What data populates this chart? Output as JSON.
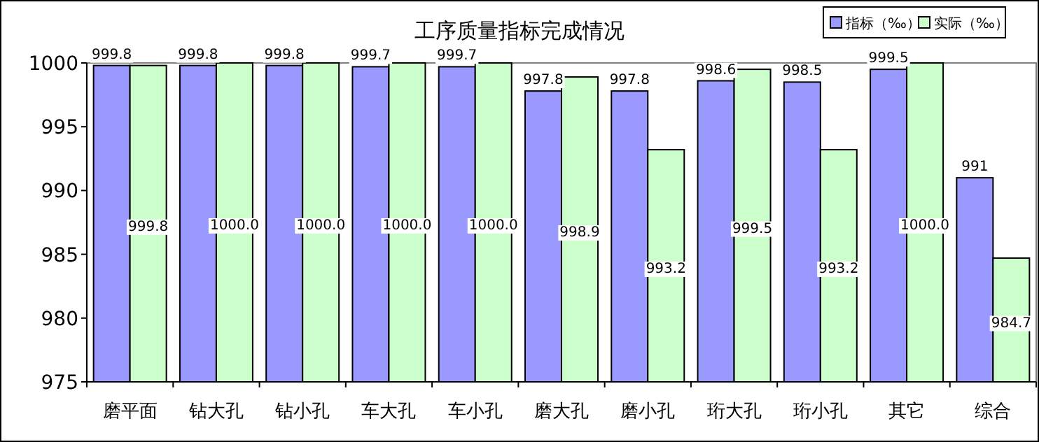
{
  "chart_data": {
    "type": "bar",
    "title": "工序质量指标完成情况",
    "categories": [
      "磨平面",
      "钻大孔",
      "钻小孔",
      "车大孔",
      "车小孔",
      "磨大孔",
      "磨小孔",
      "珩大孔",
      "珩小孔",
      "其它",
      "综合"
    ],
    "series": [
      {
        "name": "指标（‰）",
        "color": "#9999ff",
        "values": [
          999.8,
          999.8,
          999.8,
          999.7,
          999.7,
          997.8,
          997.8,
          998.6,
          998.5,
          999.5,
          991
        ],
        "value_labels": [
          "999.8",
          "999.8",
          "999.8",
          "999.7",
          "999.7",
          "997.8",
          "997.8",
          "998.6",
          "998.5",
          "999.5",
          "991"
        ]
      },
      {
        "name": "实际（‰）",
        "color": "#ccffcc",
        "values": [
          999.8,
          1000.0,
          1000.0,
          1000.0,
          1000.0,
          998.9,
          993.2,
          999.5,
          993.2,
          1000.0,
          984.7
        ],
        "value_labels": [
          "999.8",
          "1000.0",
          "1000.0",
          "1000.0",
          "1000.0",
          "998.9",
          "993.2",
          "999.5",
          "993.2",
          "1000.0",
          "984.7"
        ]
      }
    ],
    "ylim": [
      975,
      1000
    ],
    "yticks": [
      975,
      980,
      985,
      990,
      995,
      1000
    ],
    "grid": false,
    "legend": "top right"
  }
}
